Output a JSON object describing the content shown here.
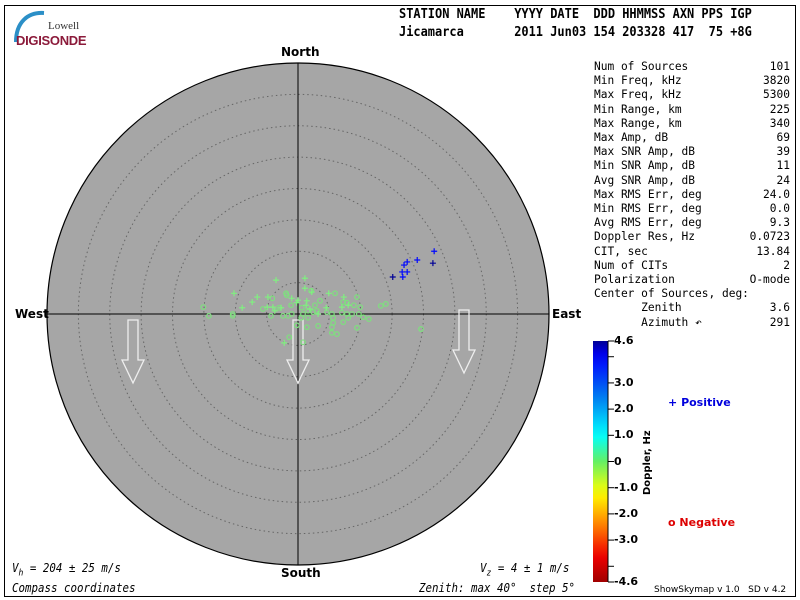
{
  "logo": {
    "line1": "Lowell",
    "line2": "DIGISONDE"
  },
  "header": {
    "labels": [
      "STATION NAME",
      "YYYY DATE",
      "DDD",
      "HHMMSS",
      "AXN",
      "PPS",
      "IGP"
    ],
    "label_line": "STATION NAME    YYYY DATE  DDD HHMMSS AXN PPS IGP",
    "value_line": "Jicamarca       2011 Jun03 154 203328 417  75 +8G",
    "station": "Jicamarca",
    "year": "2011",
    "date": "Jun03",
    "ddd": "154",
    "hhmmss": "203328",
    "axn": "417",
    "pps": "75",
    "igp": "+8G"
  },
  "compass": {
    "north": "North",
    "south": "South",
    "east": "East",
    "west": "West"
  },
  "stats": [
    {
      "label": "Num of Sources",
      "value": "101"
    },
    {
      "label": "Min Freq, kHz",
      "value": "3820"
    },
    {
      "label": "Max Freq, kHz",
      "value": "5300"
    },
    {
      "label": "Min Range, km",
      "value": "225"
    },
    {
      "label": "Max Range, km",
      "value": "340"
    },
    {
      "label": "Max Amp, dB",
      "value": "69"
    },
    {
      "label": "Max SNR Amp, dB",
      "value": "39"
    },
    {
      "label": "Min SNR Amp, dB",
      "value": "11"
    },
    {
      "label": "Avg SNR Amp, dB",
      "value": "24"
    },
    {
      "label": "Max RMS Err, deg",
      "value": "24.0"
    },
    {
      "label": "Min RMS Err, deg",
      "value": "0.0"
    },
    {
      "label": "Avg RMS Err, deg",
      "value": "9.3"
    },
    {
      "label": "Doppler Res, Hz",
      "value": "0.0723"
    },
    {
      "label": "CIT, sec",
      "value": "13.84"
    },
    {
      "label": "Num of CITs",
      "value": "2"
    },
    {
      "label": "Polarization",
      "value": "O-mode"
    },
    {
      "label": "Center of Sources, deg:",
      "value": ""
    },
    {
      "label": "       Zenith",
      "value": "3.6"
    },
    {
      "label": "       Azimuth ↶",
      "value": "291"
    }
  ],
  "colorbar": {
    "title": "Doppler, Hz",
    "range": [
      -4.6,
      4.6
    ],
    "ticks": [
      {
        "v": 4.6,
        "t": "4.6"
      },
      {
        "v": 3.0,
        "t": "3.0"
      },
      {
        "v": 2.0,
        "t": "2.0"
      },
      {
        "v": 1.0,
        "t": "1.0"
      },
      {
        "v": 0,
        "t": "0"
      },
      {
        "v": -1.0,
        "t": "-1.0"
      },
      {
        "v": -2.0,
        "t": "-2.0"
      },
      {
        "v": -3.0,
        "t": "-3.0"
      },
      {
        "v": -4.6,
        "t": "-4.6"
      }
    ],
    "minor_ticks": [
      4.0,
      -4.0
    ]
  },
  "legend": {
    "positive": "Positive",
    "negative": "Negative",
    "positive_color": "#0000dd",
    "negative_color": "#dd0000"
  },
  "footer": {
    "vh": "V",
    "vh_sub": "h",
    "vh_rest": " = 204 ± 25 m/s",
    "vz": "V",
    "vz_sub": "z",
    "vz_rest": " = 4 ± 1 m/s",
    "coords": "Compass coordinates",
    "zenith": "Zenith: max 40°  step 5°",
    "version": "ShowSkymap v 1.0   SD v 4.2"
  },
  "skymap": {
    "zenith_max_deg": 40,
    "zenith_step_deg": 5,
    "background": "#a6a6a6",
    "positive_sources": [
      [
        -3.5,
        5.4,
        0.3
      ],
      [
        1.1,
        5.7,
        0.3
      ],
      [
        -10.2,
        3.3,
        0.3
      ],
      [
        -7.3,
        1.9,
        0.3
      ],
      [
        -6.5,
        2.7,
        0.3
      ],
      [
        -8.9,
        1.0,
        0.3
      ],
      [
        -4.8,
        2.7,
        0.3
      ],
      [
        -4.9,
        1.1,
        0.3
      ],
      [
        -4.0,
        1.1,
        0.3
      ],
      [
        -3.7,
        0.5,
        0.3
      ],
      [
        -2.7,
        1.0,
        0.3
      ],
      [
        -1.0,
        2.5,
        0.3
      ],
      [
        0,
        2.2,
        0.3
      ],
      [
        -0.2,
        1.8,
        0.3
      ],
      [
        1.1,
        4.1,
        0.3
      ],
      [
        2.2,
        3.5,
        0.3
      ],
      [
        1.4,
        2.1,
        0.3
      ],
      [
        1.3,
        1.4,
        0.3
      ],
      [
        1.9,
        0.8,
        0.3
      ],
      [
        3.2,
        0,
        0.3
      ],
      [
        4.5,
        1.0,
        0.3
      ],
      [
        4.9,
        3.3,
        0.3
      ],
      [
        7.3,
        2.7,
        0.3
      ],
      [
        8.0,
        1.4,
        0.3
      ],
      [
        7.0,
        1.1,
        0.3
      ],
      [
        -2.2,
        -4.6,
        0.3
      ],
      [
        21.7,
        10.0,
        3.9
      ],
      [
        19.0,
        8.6,
        3.9
      ],
      [
        17.4,
        8.3,
        3.9
      ],
      [
        16.9,
        7.8,
        3.9
      ],
      [
        21.5,
        8.1,
        4.6
      ],
      [
        16.6,
        6.7,
        3.9
      ],
      [
        17.4,
        6.7,
        3.9
      ],
      [
        16.7,
        5.9,
        3.9
      ],
      [
        15.1,
        5.9,
        4.6
      ]
    ],
    "negative_sources": [
      [
        -15.1,
        1.1,
        -0.3
      ],
      [
        -14.2,
        -0.3,
        -0.3
      ],
      [
        -10.4,
        0,
        -0.3
      ],
      [
        -10.4,
        -0.3,
        -0.3
      ],
      [
        -5.6,
        0.8,
        -0.3
      ],
      [
        -4.3,
        -0.3,
        -0.3
      ],
      [
        -4.1,
        2.5,
        -0.3
      ],
      [
        -3.0,
        1.0,
        -0.3
      ],
      [
        -1.9,
        3.3,
        -0.3
      ],
      [
        -1.8,
        3.0,
        -0.3
      ],
      [
        -2.4,
        -0.3,
        -0.3
      ],
      [
        -1.6,
        -0.3,
        -0.3
      ],
      [
        -1.1,
        1.4,
        -0.3
      ],
      [
        -1.0,
        0,
        -0.3
      ],
      [
        -0.2,
        -1.8,
        -0.3
      ],
      [
        -1.4,
        -3.7,
        -0.3
      ],
      [
        0.8,
        -4.5,
        -0.3
      ],
      [
        0.6,
        1.0,
        -0.3
      ],
      [
        0.8,
        0,
        -0.3
      ],
      [
        0.5,
        -0.6,
        -0.3
      ],
      [
        1.6,
        -0.6,
        -0.3
      ],
      [
        1.4,
        -2.1,
        -0.3
      ],
      [
        1.6,
        0.5,
        -0.3
      ],
      [
        2.4,
        0.3,
        -0.3
      ],
      [
        2.7,
        1.4,
        -0.3
      ],
      [
        3.0,
        0.5,
        -0.3
      ],
      [
        3.5,
        2.1,
        -0.3
      ],
      [
        2.1,
        3.7,
        -0.3
      ],
      [
        3.2,
        -1.9,
        -0.3
      ],
      [
        4.6,
        0.3,
        -0.3
      ],
      [
        5.4,
        0,
        -0.3
      ],
      [
        5.6,
        -0.6,
        -0.3
      ],
      [
        5.6,
        -1.4,
        -0.3
      ],
      [
        5.4,
        -2.1,
        -0.3
      ],
      [
        5.4,
        -3.0,
        -0.3
      ],
      [
        6.2,
        -3.2,
        -0.3
      ],
      [
        5.9,
        3.3,
        -0.3
      ],
      [
        7.2,
        1.9,
        -0.3
      ],
      [
        7.8,
        1.8,
        -0.3
      ],
      [
        7.0,
        0.2,
        -0.3
      ],
      [
        7.8,
        0,
        -0.3
      ],
      [
        8.6,
        0,
        -0.3
      ],
      [
        7.2,
        -1.3,
        -0.3
      ],
      [
        8.0,
        -0.6,
        -0.3
      ],
      [
        9.4,
        2.7,
        -0.3
      ],
      [
        8.9,
        1.4,
        -0.3
      ],
      [
        9.9,
        1.1,
        -0.3
      ],
      [
        9.7,
        0,
        -0.3
      ],
      [
        10.4,
        -0.5,
        -0.3
      ],
      [
        11.3,
        -0.8,
        -0.3
      ],
      [
        9.4,
        -2.2,
        -0.3
      ],
      [
        13.2,
        1.3,
        -0.3
      ],
      [
        14.0,
        1.6,
        -0.3
      ],
      [
        19.6,
        -2.4,
        -0.3
      ]
    ]
  }
}
